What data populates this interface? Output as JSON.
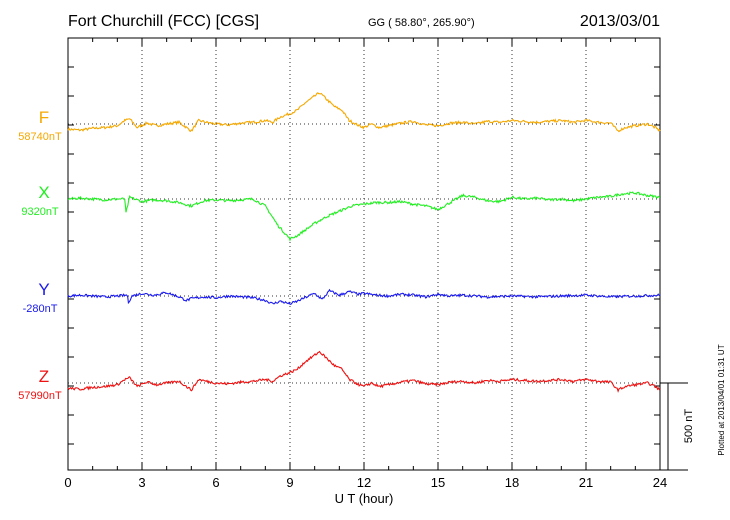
{
  "header": {
    "station": "Fort Churchill (FCC)  [CGS]",
    "coords": "GG ( 58.80°, 265.90°)",
    "date": "2013/03/01"
  },
  "footer": {
    "plotted_note": "Plotted at 2013/04/01 01:31  UT",
    "scale_label": "500 nT"
  },
  "chart_data": {
    "type": "line",
    "title": "",
    "xlabel": "U T (hour)",
    "ylabel": "",
    "xlim": [
      0,
      24
    ],
    "x_ticks": [
      "0",
      "3",
      "6",
      "9",
      "12",
      "15",
      "18",
      "21",
      "24"
    ],
    "grid": true,
    "legend": "left",
    "series": [
      {
        "name": "F",
        "baseline_label": "58740nT",
        "color": "#f5a800",
        "x": [
          0,
          0.5,
          1,
          1.5,
          2,
          2.3,
          2.5,
          2.8,
          3.2,
          3.6,
          4,
          4.5,
          5,
          5.3,
          5.6,
          6,
          6.5,
          7,
          7.5,
          8,
          8.3,
          8.6,
          9,
          9.3,
          9.6,
          9.9,
          10.2,
          10.5,
          10.8,
          11.1,
          11.4,
          11.8,
          12,
          12.3,
          12.6,
          13,
          13.5,
          14,
          14.5,
          15,
          15.5,
          16,
          16.5,
          17,
          17.5,
          18,
          18.5,
          19,
          19.5,
          20,
          20.5,
          21,
          21.5,
          22,
          22.3,
          22.6,
          23,
          23.5,
          23.8,
          24
        ],
        "values": [
          -30,
          -35,
          -25,
          -20,
          -10,
          20,
          30,
          -20,
          5,
          -10,
          0,
          10,
          -40,
          20,
          10,
          0,
          -5,
          5,
          10,
          20,
          10,
          40,
          60,
          80,
          120,
          150,
          180,
          140,
          100,
          80,
          20,
          -10,
          -20,
          0,
          -20,
          -10,
          5,
          15,
          -5,
          -10,
          5,
          10,
          0,
          15,
          10,
          20,
          15,
          10,
          15,
          20,
          10,
          20,
          10,
          5,
          -40,
          -20,
          -10,
          0,
          -20,
          -40
        ]
      },
      {
        "name": "X",
        "baseline_label": "9320nT",
        "color": "#22ee22",
        "x": [
          0,
          0.5,
          1,
          1.5,
          2,
          2.3,
          2.35,
          2.5,
          3,
          3.5,
          4,
          4.5,
          5,
          5.5,
          6,
          6.5,
          7,
          7.5,
          8,
          8.5,
          9,
          9.3,
          9.6,
          10,
          10.5,
          11,
          11.5,
          12,
          12.5,
          13,
          13.5,
          14,
          14.5,
          15,
          15.5,
          16,
          16.5,
          17,
          17.5,
          18,
          18.5,
          19,
          19.5,
          20,
          20.5,
          21,
          21.5,
          22,
          22.5,
          23,
          23.5,
          24
        ],
        "values": [
          0,
          5,
          0,
          -5,
          0,
          0,
          -80,
          10,
          -15,
          -5,
          -10,
          -20,
          -40,
          -10,
          -5,
          -10,
          -5,
          0,
          -40,
          -150,
          -230,
          -210,
          -180,
          -140,
          -100,
          -70,
          -40,
          -30,
          -20,
          -20,
          -15,
          -30,
          -40,
          -60,
          -20,
          20,
          10,
          -10,
          -15,
          10,
          0,
          5,
          -5,
          0,
          -10,
          0,
          10,
          15,
          30,
          35,
          20,
          10
        ]
      },
      {
        "name": "Y",
        "baseline_label": "-280nT",
        "color": "#1a1aee",
        "x": [
          0,
          0.5,
          1,
          1.5,
          2,
          2.4,
          2.45,
          2.6,
          3,
          3.5,
          4,
          4.5,
          4.8,
          5,
          5.5,
          6,
          6.5,
          7,
          7.5,
          8,
          8.3,
          8.6,
          9,
          9.3,
          9.6,
          10,
          10.3,
          10.6,
          11,
          11.4,
          11.8,
          12,
          12.5,
          13,
          13.5,
          14,
          14.5,
          15,
          15.5,
          16,
          17,
          18,
          19,
          20,
          21,
          22,
          23,
          24
        ],
        "values": [
          0,
          5,
          0,
          -5,
          0,
          5,
          -35,
          0,
          15,
          5,
          20,
          -5,
          -25,
          -15,
          -5,
          -10,
          0,
          -5,
          -10,
          -25,
          -45,
          -30,
          -45,
          -30,
          -10,
          15,
          -20,
          30,
          5,
          25,
          10,
          15,
          5,
          0,
          10,
          5,
          -5,
          10,
          0,
          5,
          -5,
          0,
          -5,
          0,
          5,
          -5,
          0,
          5
        ]
      },
      {
        "name": "Z",
        "baseline_label": "57990nT",
        "color": "#ee1111",
        "x": [
          0,
          0.5,
          1,
          1.5,
          2,
          2.3,
          2.5,
          2.8,
          3.2,
          3.6,
          4,
          4.5,
          5,
          5.3,
          5.6,
          6,
          6.5,
          7,
          7.5,
          8,
          8.3,
          8.6,
          9,
          9.3,
          9.6,
          9.9,
          10.2,
          10.5,
          10.8,
          11.1,
          11.4,
          11.8,
          12,
          12.3,
          12.6,
          13,
          13.5,
          14,
          14.5,
          15,
          15.5,
          16,
          16.5,
          17,
          17.5,
          18,
          18.5,
          19,
          19.5,
          20,
          20.5,
          21,
          21.5,
          22,
          22.3,
          22.6,
          23,
          23.5,
          23.8,
          24
        ],
        "values": [
          -30,
          -35,
          -25,
          -20,
          -10,
          20,
          30,
          -20,
          5,
          -10,
          0,
          10,
          -40,
          20,
          10,
          0,
          -5,
          5,
          10,
          20,
          10,
          40,
          60,
          80,
          120,
          150,
          180,
          140,
          100,
          80,
          20,
          -10,
          -20,
          0,
          -20,
          -10,
          5,
          15,
          -5,
          -10,
          5,
          10,
          0,
          15,
          10,
          20,
          15,
          10,
          15,
          20,
          10,
          20,
          10,
          5,
          -40,
          -20,
          -10,
          0,
          -20,
          -40
        ]
      }
    ]
  }
}
